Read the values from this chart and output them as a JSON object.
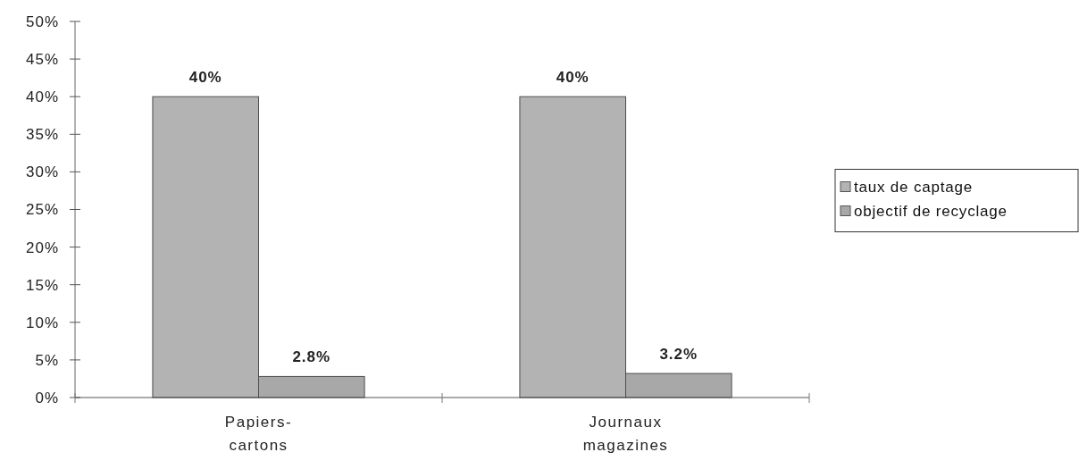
{
  "chart_data": {
    "type": "bar",
    "categories": [
      "Papiers-\ncartons",
      "Journaux\nmagazines"
    ],
    "series": [
      {
        "name": "taux de captage",
        "color": "#b3b3b3",
        "values": [
          40,
          40
        ],
        "value_labels": [
          "40%",
          "40%"
        ]
      },
      {
        "name": "objectif de recyclage",
        "color": "#a8a8a8",
        "values": [
          2.8,
          3.2
        ],
        "value_labels": [
          "2.8%",
          "3.2%"
        ]
      }
    ],
    "ylim": [
      0,
      50
    ],
    "yticks": [
      {
        "value": 0,
        "label": "0%"
      },
      {
        "value": 5,
        "label": "5%"
      },
      {
        "value": 10,
        "label": "10%"
      },
      {
        "value": 15,
        "label": "15%"
      },
      {
        "value": 20,
        "label": "20%"
      },
      {
        "value": 25,
        "label": "25%"
      },
      {
        "value": 30,
        "label": "30%"
      },
      {
        "value": 35,
        "label": "35%"
      },
      {
        "value": 40,
        "label": "40%"
      },
      {
        "value": 45,
        "label": "45%"
      },
      {
        "value": 50,
        "label": "50%"
      }
    ],
    "grid": false,
    "legend": "right"
  }
}
